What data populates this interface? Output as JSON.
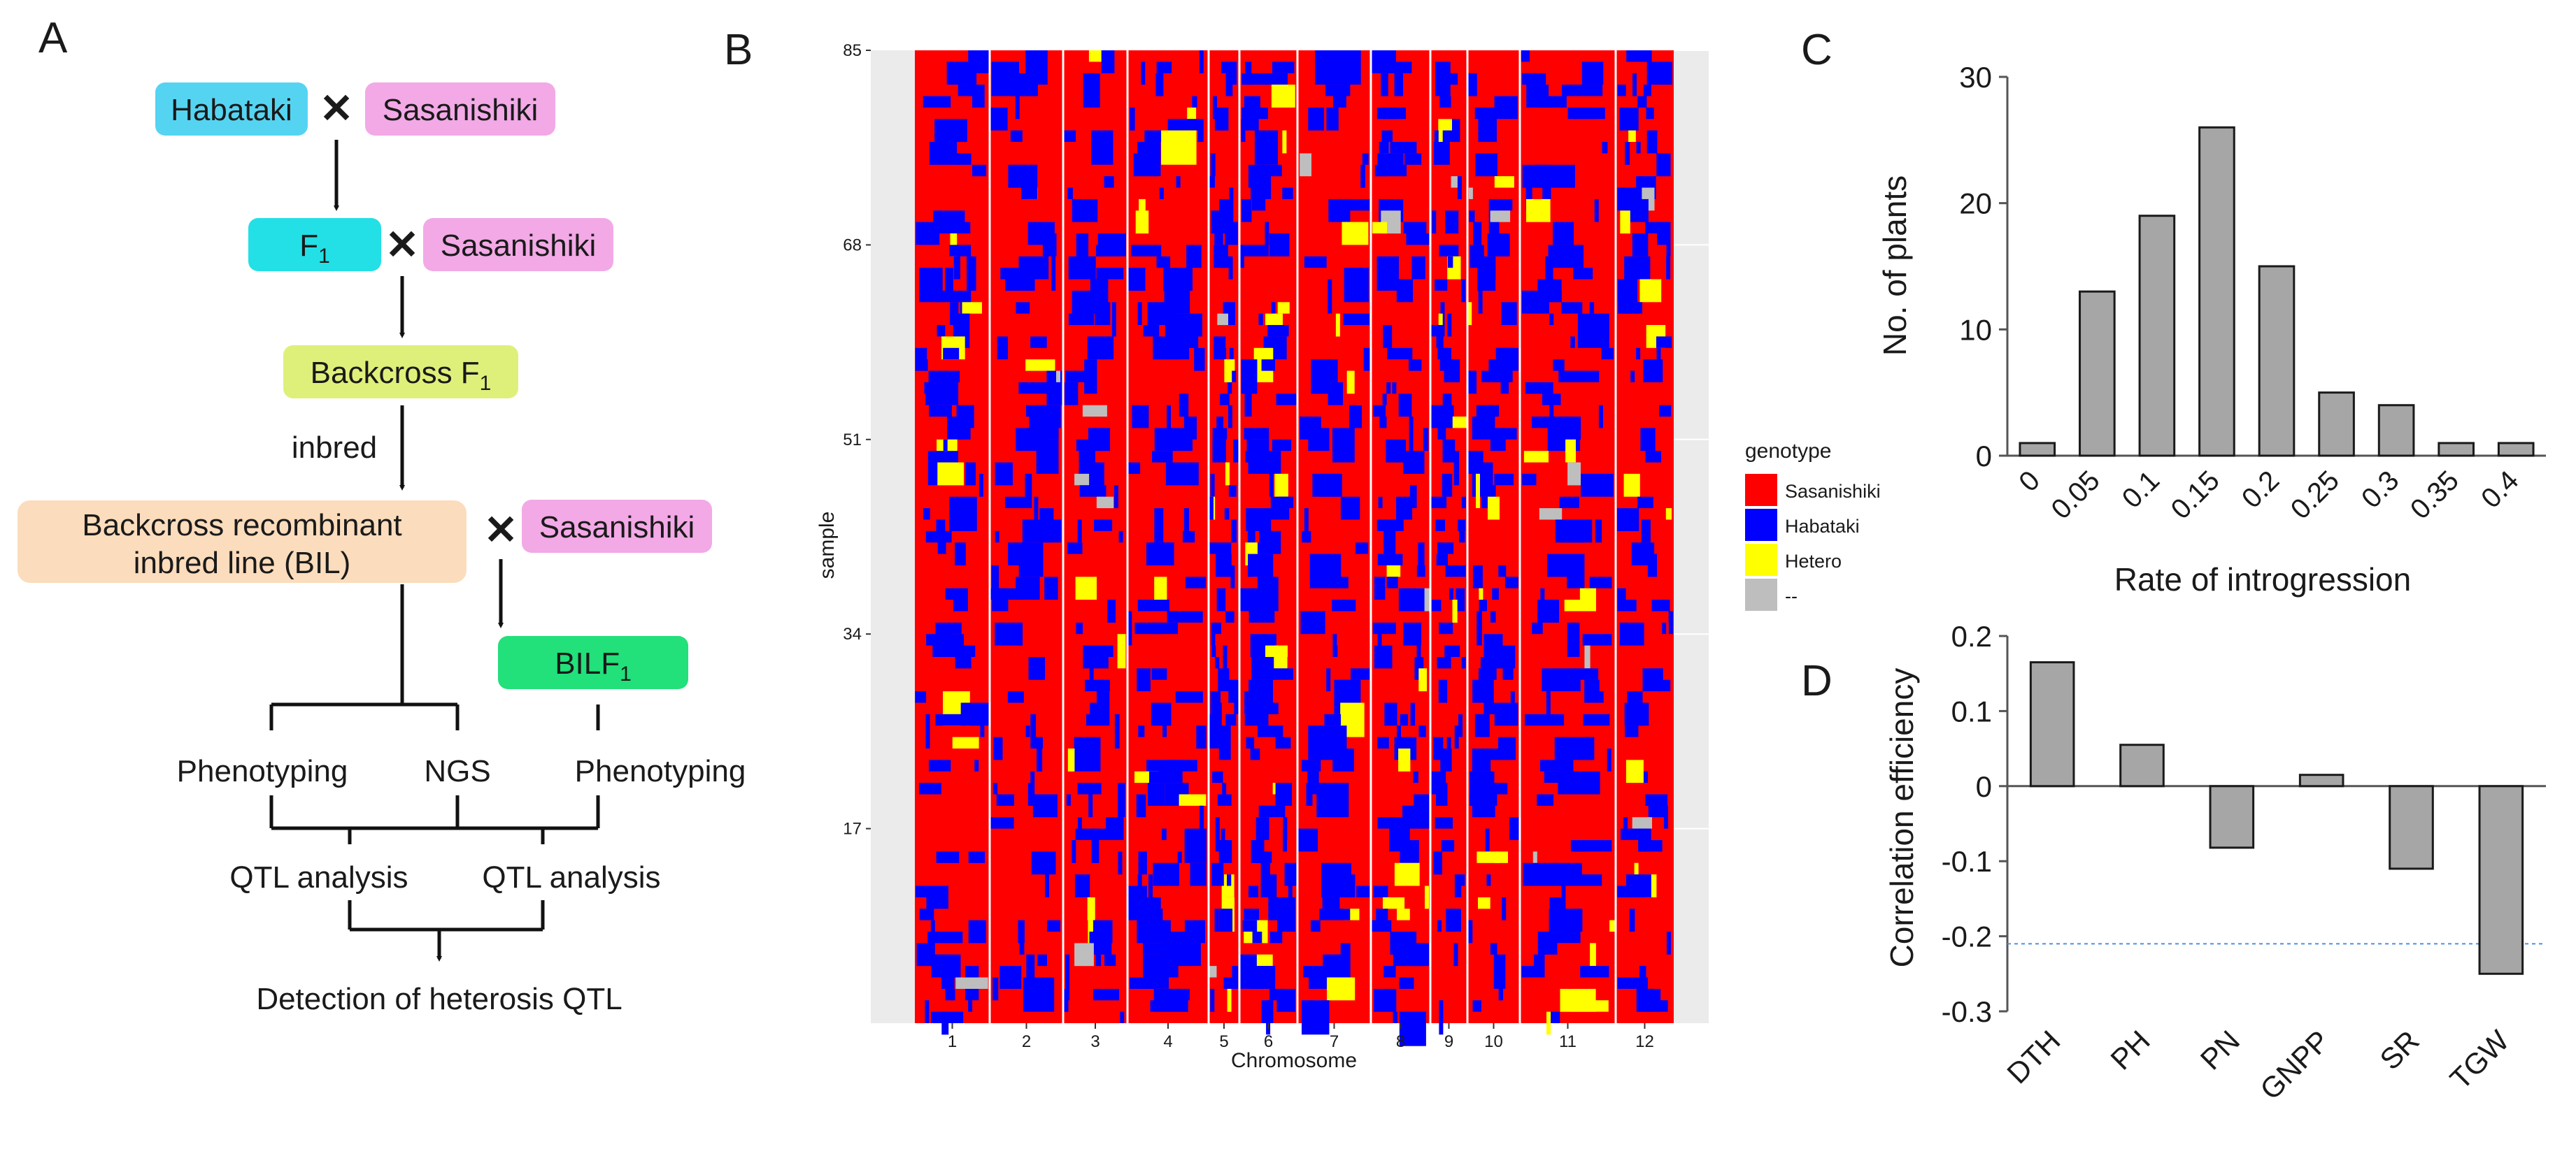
{
  "colors": {
    "sasanishiki": "#f2a9e6",
    "habataki": "#55d4f2",
    "f1": "#22e0e6",
    "backcross": "#dff07a",
    "bil": "#fbdcbc",
    "bilf1": "#22e07a",
    "heat_red": "#ff0000",
    "heat_blue": "#0000ff",
    "heat_yellow": "#ffff00",
    "heat_gray": "#bebebe",
    "bar_fill": "#a6a6a6",
    "threshold_line": "#4a90e2"
  },
  "panelA": {
    "label": "A",
    "habataki": "Habataki",
    "sasanishiki_1": "Sasanishiki",
    "f1_base": "F",
    "f1_sub": "1",
    "sasanishiki_2": "Sasanishiki",
    "backcross_base": "Backcross F",
    "backcross_sub": "1",
    "inbred": "inbred",
    "bil_line1": "Backcross recombinant",
    "bil_line2": "inbred line (BIL)",
    "sasanishiki_3": "Sasanishiki",
    "bilf1_base": "BILF",
    "bilf1_sub": "1",
    "phenotyping_1": "Phenotyping",
    "ngs": "NGS",
    "phenotyping_2": "Phenotyping",
    "qtl_1": "QTL  analysis",
    "qtl_2": "QTL  analysis",
    "detection": "Detection of heterosis QTL"
  },
  "chart_data": [
    {
      "type": "heatmap",
      "panel": "B",
      "label": "B",
      "xlabel": "Chromosome",
      "ylabel": "sample",
      "x_categories": [
        "1",
        "2",
        "3",
        "4",
        "5",
        "6",
        "7",
        "8",
        "9",
        "10",
        "11",
        "12"
      ],
      "y_ticks": [
        17,
        34,
        51,
        68,
        85
      ],
      "n_samples": 85,
      "legend_title": "genotype",
      "legend": [
        "Sasanishiki",
        "Habataki",
        "Hetero",
        "--"
      ]
    },
    {
      "type": "bar",
      "panel": "C",
      "label": "C",
      "categories": [
        "0",
        "0.05",
        "0.1",
        "0.15",
        "0.2",
        "0.25",
        "0.3",
        "0.35",
        "0.4"
      ],
      "values": [
        1,
        13,
        19,
        26,
        15,
        5,
        4,
        1,
        1
      ],
      "xlabel": "Rate of introgression",
      "ylabel": "No. of plants",
      "ylim": [
        0,
        30
      ],
      "yticks": [
        "0",
        "10",
        "20",
        "30"
      ]
    },
    {
      "type": "bar",
      "panel": "D",
      "label": "D",
      "categories": [
        "DTH",
        "PH",
        "PN",
        "GNPP",
        "SR",
        "TGW"
      ],
      "values": [
        0.165,
        0.055,
        -0.082,
        0.015,
        -0.11,
        -0.25
      ],
      "xlabel": "",
      "ylabel": "Correlation efficiency",
      "ylim": [
        -0.3,
        0.2
      ],
      "yticks": [
        "0.2",
        "0.1",
        "0",
        "-0.1",
        "-0.2",
        "-0.3"
      ],
      "threshold": -0.21
    }
  ]
}
